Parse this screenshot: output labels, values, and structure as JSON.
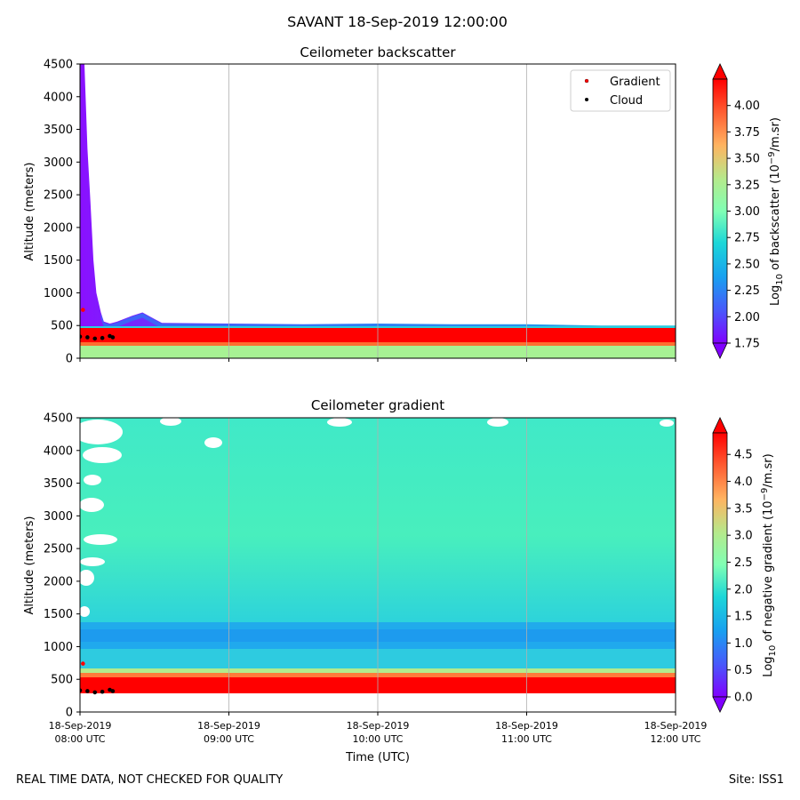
{
  "suptitle": "SAVANT 18-Sep-2019 12:00:00",
  "footer_left": "REAL TIME DATA, NOT CHECKED FOR QUALITY",
  "footer_right": "Site: ISS1",
  "legend": {
    "gradient": "Gradient",
    "cloud": "Cloud",
    "gradient_color": "#ff0000",
    "cloud_color": "#000000"
  },
  "chart_data": [
    {
      "type": "heatmap",
      "title": "Ceilometer backscatter",
      "xlabel": "",
      "ylabel": "Altitude (meters)",
      "ylim": [
        0,
        4500
      ],
      "yticks": [
        0,
        500,
        1000,
        1500,
        2000,
        2500,
        3000,
        3500,
        4000,
        4500
      ],
      "colorbar": {
        "label": "Log10 of backscatter (10^-9/m.sr)",
        "label_parts": [
          "Log",
          "10",
          " of backscatter (10",
          "−9",
          "/m.sr)"
        ],
        "range": [
          1.75,
          4.25
        ],
        "ticks": [
          "1.75",
          "2.00",
          "2.25",
          "2.50",
          "2.75",
          "3.00",
          "3.25",
          "3.50",
          "3.75",
          "4.00"
        ],
        "tick_values": [
          1.75,
          2.0,
          2.25,
          2.5,
          2.75,
          3.0,
          3.25,
          3.5,
          3.75,
          4.0
        ]
      },
      "boundary_layer_top_m": [
        [
          0,
          4500
        ],
        [
          0.03,
          4500
        ],
        [
          0.05,
          3200
        ],
        [
          0.07,
          2400
        ],
        [
          0.09,
          1500
        ],
        [
          0.11,
          1000
        ],
        [
          0.14,
          700
        ],
        [
          0.16,
          560
        ],
        [
          0.2,
          530
        ],
        [
          0.25,
          560
        ],
        [
          0.35,
          650
        ],
        [
          0.42,
          700
        ],
        [
          0.5,
          600
        ],
        [
          0.55,
          540
        ],
        [
          1.0,
          530
        ],
        [
          1.5,
          520
        ],
        [
          2.0,
          530
        ],
        [
          2.5,
          520
        ],
        [
          3.0,
          520
        ],
        [
          3.5,
          500
        ],
        [
          4.0,
          500
        ]
      ],
      "strong_layer_m": [
        130,
        470
      ],
      "surface_layer_m": [
        0,
        200
      ],
      "cloud_points_m": [
        [
          0.0,
          330
        ],
        [
          0.05,
          320
        ],
        [
          0.1,
          300
        ],
        [
          0.15,
          310
        ],
        [
          0.2,
          340
        ],
        [
          0.22,
          320
        ]
      ],
      "gradient_points_m": [
        [
          0.02,
          740
        ]
      ]
    },
    {
      "type": "heatmap",
      "title": "Ceilometer gradient",
      "xlabel": "Time (UTC)",
      "ylabel": "Altitude (meters)",
      "ylim": [
        0,
        4500
      ],
      "yticks": [
        0,
        500,
        1000,
        1500,
        2000,
        2500,
        3000,
        3500,
        4000,
        4500
      ],
      "colorbar": {
        "label": "Log10 of negative gradient (10^-9/m.sr)",
        "label_parts": [
          "Log",
          "10",
          " of negative gradient (10",
          "−9",
          "/m.sr)"
        ],
        "range": [
          0.0,
          4.9
        ],
        "ticks": [
          "0.0",
          "0.5",
          "1.0",
          "1.5",
          "2.0",
          "2.5",
          "3.0",
          "3.5",
          "4.0",
          "4.5"
        ],
        "tick_values": [
          0.0,
          0.5,
          1.0,
          1.5,
          2.0,
          2.5,
          3.0,
          3.5,
          4.0,
          4.5
        ]
      },
      "strong_layer_m": [
        300,
        600
      ],
      "enhanced_band_m": [
        900,
        1300
      ],
      "cloud_points_m": [
        [
          0.0,
          330
        ],
        [
          0.05,
          320
        ],
        [
          0.1,
          300
        ],
        [
          0.15,
          310
        ],
        [
          0.2,
          340
        ],
        [
          0.22,
          320
        ]
      ],
      "gradient_points_m": [
        [
          0.02,
          740
        ]
      ]
    }
  ],
  "xaxis": {
    "range_hours": [
      0,
      4
    ],
    "ticks": [
      {
        "pos": 0,
        "line1": "18-Sep-2019",
        "line2": "08:00 UTC"
      },
      {
        "pos": 1,
        "line1": "18-Sep-2019",
        "line2": "09:00 UTC"
      },
      {
        "pos": 2,
        "line1": "18-Sep-2019",
        "line2": "10:00 UTC"
      },
      {
        "pos": 3,
        "line1": "18-Sep-2019",
        "line2": "11:00 UTC"
      },
      {
        "pos": 4,
        "line1": "18-Sep-2019",
        "line2": "12:00 UTC"
      }
    ]
  }
}
